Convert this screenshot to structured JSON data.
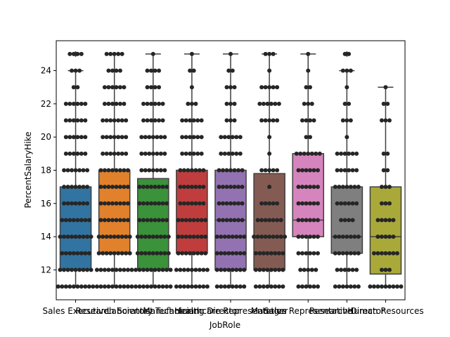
{
  "chart_data": {
    "type": "box",
    "overlay": "swarm",
    "title": "",
    "xlabel": "JobRole",
    "ylabel": "PercentSalaryHike",
    "ylim": [
      10.2,
      25.8
    ],
    "yticks": [
      12,
      14,
      16,
      18,
      20,
      22,
      24
    ],
    "grid": false,
    "point_color": "#262626",
    "categories": [
      "Sales Executive",
      "Research Scientist",
      "Laboratory Technician",
      "Manufacturing Director",
      "Healthcare Representative",
      "Manager",
      "Sales Representative",
      "Research Director",
      "Human Resources"
    ],
    "series": [
      {
        "q1": 12,
        "median": 14,
        "q3": 17,
        "whisker_low": 11,
        "whisker_high": 24,
        "outliers": [
          25
        ],
        "color": "#3274a1",
        "points": {
          "11": 10,
          "12": 9,
          "13": 8,
          "14": 9,
          "15": 8,
          "16": 7,
          "17": 7,
          "18": 7,
          "19": 6,
          "20": 6,
          "21": 6,
          "22": 6,
          "23": 2,
          "24": 3,
          "25": 4
        }
      },
      {
        "q1": 13,
        "median": 15,
        "q3": 18,
        "whisker_low": 11,
        "whisker_high": 25,
        "outliers": [],
        "color": "#e1812c",
        "points": {
          "11": 10,
          "12": 10,
          "13": 9,
          "14": 9,
          "15": 8,
          "16": 8,
          "17": 8,
          "18": 8,
          "19": 7,
          "20": 7,
          "21": 7,
          "22": 6,
          "23": 6,
          "24": 4,
          "25": 5
        }
      },
      {
        "q1": 12,
        "median": 14,
        "q3": 17.5,
        "whisker_low": 11,
        "whisker_high": 25,
        "outliers": [],
        "color": "#3a923a",
        "points": {
          "11": 10,
          "12": 10,
          "13": 9,
          "14": 9,
          "15": 8,
          "16": 8,
          "17": 8,
          "18": 7,
          "19": 7,
          "20": 7,
          "21": 6,
          "22": 6,
          "23": 4,
          "24": 4,
          "25": 1
        }
      },
      {
        "q1": 13,
        "median": 15,
        "q3": 18,
        "whisker_low": 11,
        "whisker_high": 25,
        "outliers": [],
        "color": "#c03d3e",
        "points": {
          "11": 9,
          "12": 9,
          "13": 8,
          "14": 8,
          "15": 8,
          "16": 7,
          "17": 7,
          "18": 7,
          "19": 6,
          "20": 6,
          "21": 6,
          "22": 3,
          "23": 1,
          "24": 2,
          "25": 1
        }
      },
      {
        "q1": 12,
        "median": 15,
        "q3": 18,
        "whisker_low": 11,
        "whisker_high": 25,
        "outliers": [],
        "color": "#9372b2",
        "points": {
          "11": 8,
          "12": 8,
          "13": 8,
          "14": 8,
          "15": 7,
          "16": 7,
          "17": 7,
          "18": 7,
          "19": 6,
          "20": 6,
          "21": 3,
          "22": 3,
          "23": 3,
          "24": 2,
          "25": 1
        }
      },
      {
        "q1": 12,
        "median": 14,
        "q3": 17.8,
        "whisker_low": 11,
        "whisker_high": 25,
        "outliers": [],
        "color": "#845b53",
        "points": {
          "11": 8,
          "12": 8,
          "13": 8,
          "14": 9,
          "15": 7,
          "16": 5,
          "17": 1,
          "18": 5,
          "19": 1,
          "20": 1,
          "21": 5,
          "22": 6,
          "23": 5,
          "24": 1,
          "25": 3
        }
      },
      {
        "q1": 14,
        "median": 15,
        "q3": 19,
        "whisker_low": 11,
        "whisker_high": 25,
        "outliers": [],
        "color": "#d684bd",
        "points": {
          "11": 6,
          "12": 5,
          "13": 6,
          "14": 6,
          "15": 6,
          "16": 6,
          "17": 6,
          "18": 6,
          "19": 7,
          "20": 2,
          "21": 4,
          "22": 3,
          "23": 2,
          "24": 1,
          "25": 1
        }
      },
      {
        "q1": 13,
        "median": 14,
        "q3": 17,
        "whisker_low": 11,
        "whisker_high": 24,
        "outliers": [
          25
        ],
        "color": "#7f7f7f",
        "points": {
          "11": 7,
          "12": 6,
          "13": 7,
          "14": 7,
          "15": 4,
          "16": 6,
          "17": 7,
          "18": 6,
          "19": 6,
          "20": 1,
          "21": 3,
          "22": 2,
          "23": 1,
          "24": 3,
          "25": 2
        }
      },
      {
        "q1": 11.75,
        "median": 14,
        "q3": 17,
        "whisker_low": 11,
        "whisker_high": 23,
        "outliers": [],
        "color": "#a9a93a",
        "points": {
          "11": 9,
          "12": 3,
          "13": 7,
          "14": 5,
          "15": 5,
          "16": 3,
          "17": 3,
          "18": 2,
          "19": 2,
          "21": 3,
          "22": 2,
          "23": 1
        }
      }
    ]
  }
}
